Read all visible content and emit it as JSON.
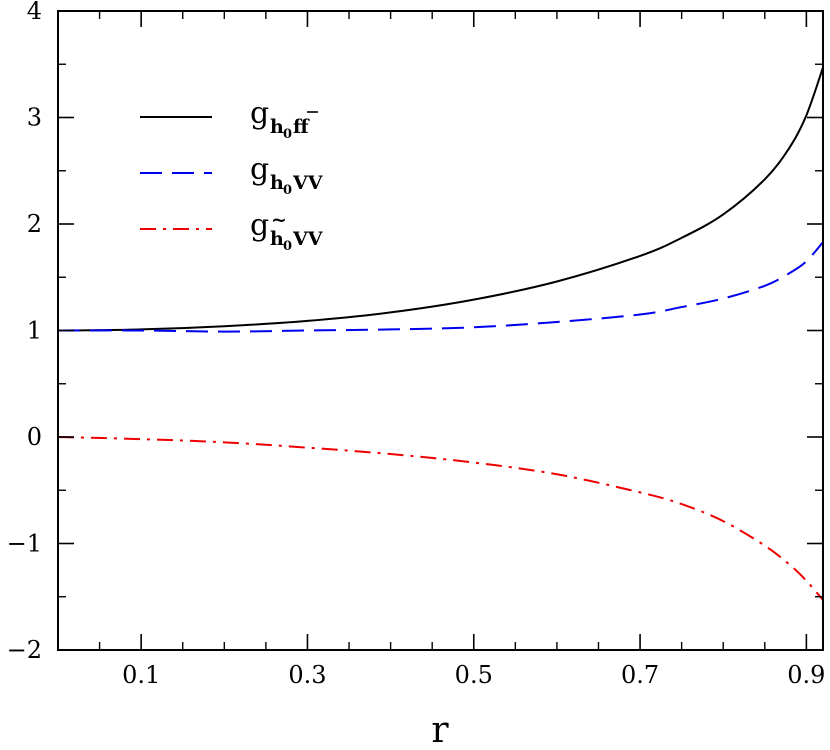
{
  "chart_data": {
    "type": "line",
    "xlabel": "r",
    "ylabel": "",
    "xlim": [
      0,
      0.92
    ],
    "ylim": [
      -2,
      4
    ],
    "x_ticks": [
      0.1,
      0.3,
      0.5,
      0.7,
      0.9
    ],
    "x_tick_labels": [
      "0.1",
      "0.3",
      "0.5",
      "0.7",
      "0.9"
    ],
    "y_ticks": [
      -2,
      -1,
      0,
      1,
      2,
      3,
      4
    ],
    "y_tick_labels": [
      "−2",
      "−1",
      "0",
      "1",
      "2",
      "3",
      "4"
    ],
    "grid": false,
    "legend_position": "top-left",
    "series": [
      {
        "name": "g_{h0 f f̄}",
        "legend_base": "g",
        "legend_sub": "h",
        "legend_subsub": "0",
        "legend_tail": "ff",
        "color": "#000000",
        "dash": "solid",
        "x": [
          0,
          0.1,
          0.2,
          0.3,
          0.4,
          0.5,
          0.6,
          0.7,
          0.75,
          0.8,
          0.85,
          0.88,
          0.9,
          0.92
        ],
        "y": [
          1.0,
          1.01,
          1.04,
          1.09,
          1.17,
          1.29,
          1.46,
          1.7,
          1.87,
          2.09,
          2.42,
          2.72,
          3.02,
          3.47
        ]
      },
      {
        "name": "g_{h0 VV}",
        "legend_base": "g",
        "legend_sub": "h",
        "legend_subsub": "0",
        "legend_tail": "VV",
        "color": "#0000ee",
        "dash": "long-dash",
        "x": [
          0,
          0.1,
          0.2,
          0.3,
          0.4,
          0.5,
          0.6,
          0.7,
          0.75,
          0.8,
          0.85,
          0.88,
          0.9,
          0.92
        ],
        "y": [
          1.0,
          1.0,
          0.99,
          1.0,
          1.01,
          1.03,
          1.08,
          1.15,
          1.22,
          1.3,
          1.42,
          1.54,
          1.65,
          1.83
        ]
      },
      {
        "name": "g_{h̃0 VV}",
        "legend_base": "g",
        "legend_sub": "h",
        "legend_subsub": "0",
        "legend_tail": "VV",
        "color": "#ee0000",
        "dash": "dash-dot",
        "x": [
          0,
          0.1,
          0.2,
          0.3,
          0.4,
          0.5,
          0.6,
          0.7,
          0.75,
          0.8,
          0.85,
          0.88,
          0.9,
          0.92
        ],
        "y": [
          0.0,
          -0.02,
          -0.05,
          -0.1,
          -0.16,
          -0.24,
          -0.35,
          -0.52,
          -0.63,
          -0.79,
          -1.02,
          -1.2,
          -1.35,
          -1.53
        ]
      }
    ]
  }
}
